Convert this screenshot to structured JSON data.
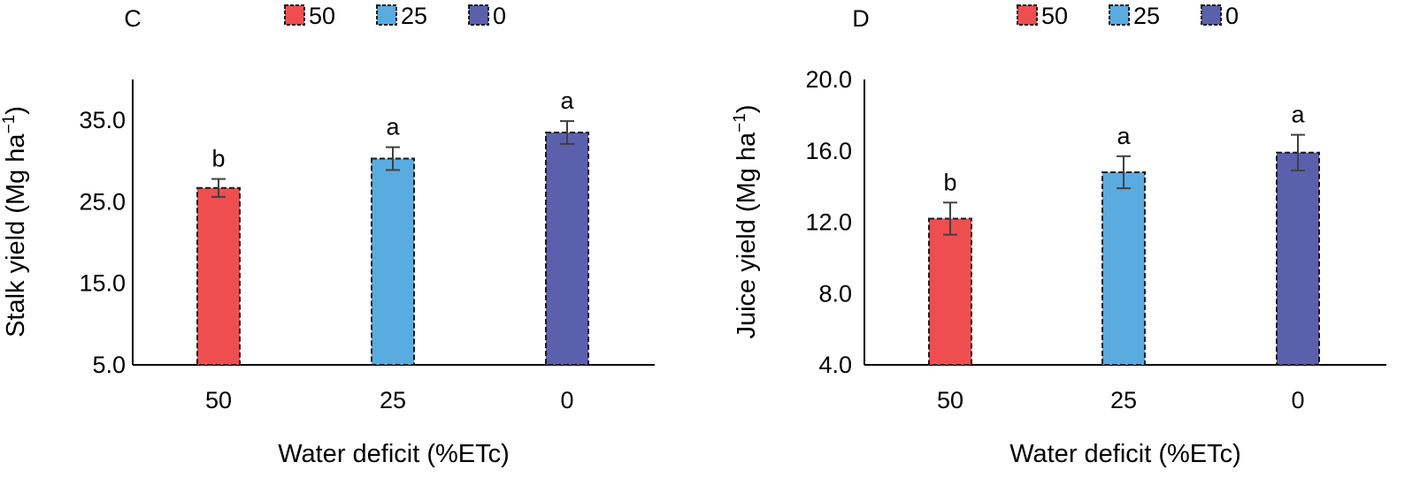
{
  "chart_data": [
    {
      "type": "bar",
      "panel": "C",
      "categories": [
        "50",
        "25",
        "0"
      ],
      "values": [
        26.7,
        30.3,
        33.5
      ],
      "errors": [
        1.1,
        1.4,
        1.4
      ],
      "significance": [
        "b",
        "a",
        "a"
      ],
      "colors": [
        "#EF4E51",
        "#5AABDF",
        "#5A60AC"
      ],
      "legend": [
        "50",
        "25",
        "0"
      ],
      "xlabel": "Water deficit (%ETc)",
      "ylabel": "Stalk yield (Mg ha",
      "ylabel_sup": "−1",
      "ylabel_close": ")",
      "ylim": [
        5.0,
        40.0
      ],
      "yticks": [
        "5.0",
        "15.0",
        "25.0",
        "35.0"
      ],
      "ytick_values": [
        5,
        15,
        25,
        35
      ],
      "grid": false
    },
    {
      "type": "bar",
      "panel": "D",
      "categories": [
        "50",
        "25",
        "0"
      ],
      "values": [
        12.2,
        14.8,
        15.9
      ],
      "errors": [
        0.9,
        0.9,
        1.0
      ],
      "significance": [
        "b",
        "a",
        "a"
      ],
      "colors": [
        "#EF4E51",
        "#5AABDF",
        "#5A60AC"
      ],
      "legend": [
        "50",
        "25",
        "0"
      ],
      "xlabel": "Water deficit (%ETc)",
      "ylabel": "Juice yield  (Mg ha",
      "ylabel_sup": "−1",
      "ylabel_close": ")",
      "ylim": [
        4.0,
        20.0
      ],
      "yticks": [
        "4.0",
        "8.0",
        "12.0",
        "16.0",
        "20.0"
      ],
      "ytick_values": [
        4,
        8,
        12,
        16,
        20
      ],
      "grid": false
    }
  ]
}
